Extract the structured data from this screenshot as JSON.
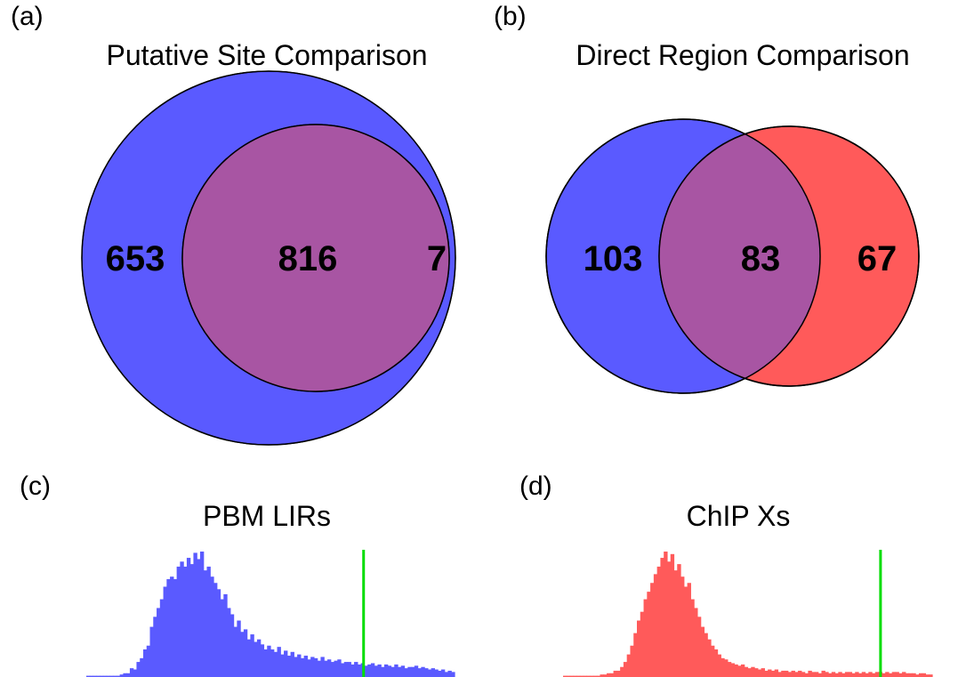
{
  "panels": {
    "a": {
      "letter": "(a)",
      "title": "Putative Site Comparison"
    },
    "b": {
      "letter": "(b)",
      "title": "Direct Region Comparison"
    },
    "c": {
      "letter": "(c)",
      "title": "PBM LIRs"
    },
    "d": {
      "letter": "(d)",
      "title": "ChIP Xs"
    }
  },
  "colors": {
    "blue": "#5a5aff",
    "red": "#ff5a5a",
    "overlap": "#a855a3",
    "marker": "#00dd00"
  },
  "chart_data": [
    {
      "type": "venn",
      "title": "Putative Site Comparison",
      "only_left": 653,
      "both": 816,
      "only_right": 7,
      "labels": [
        "653",
        "816",
        "7"
      ]
    },
    {
      "type": "venn",
      "title": "Direct Region Comparison",
      "only_left": 103,
      "both": 83,
      "only_right": 67,
      "labels": [
        "103",
        "83",
        "67"
      ]
    },
    {
      "type": "histogram",
      "title": "PBM LIRs",
      "color": "blue",
      "bin_heights": [
        0.01,
        0.01,
        0.01,
        0.01,
        0.01,
        0.01,
        0.01,
        0.01,
        0.01,
        0.01,
        0.02,
        0.03,
        0.03,
        0.07,
        0.06,
        0.12,
        0.15,
        0.22,
        0.25,
        0.4,
        0.48,
        0.55,
        0.62,
        0.72,
        0.78,
        0.8,
        0.78,
        0.88,
        0.92,
        0.88,
        0.95,
        0.9,
        0.99,
        0.94,
        1.0,
        0.85,
        0.88,
        0.8,
        0.75,
        0.7,
        0.62,
        0.66,
        0.55,
        0.5,
        0.4,
        0.45,
        0.36,
        0.38,
        0.3,
        0.34,
        0.28,
        0.3,
        0.26,
        0.22,
        0.25,
        0.22,
        0.2,
        0.24,
        0.18,
        0.21,
        0.17,
        0.2,
        0.16,
        0.18,
        0.15,
        0.17,
        0.14,
        0.16,
        0.15,
        0.13,
        0.16,
        0.13,
        0.14,
        0.12,
        0.13,
        0.14,
        0.11,
        0.12,
        0.12,
        0.1,
        0.12,
        0.1,
        0.11,
        0.09,
        0.1,
        0.11,
        0.09,
        0.1,
        0.08,
        0.1,
        0.09,
        0.08,
        0.1,
        0.08,
        0.09,
        0.07,
        0.08,
        0.08,
        0.09,
        0.07,
        0.08,
        0.07,
        0.06,
        0.07,
        0.06,
        0.05,
        0.06,
        0.04,
        0.05,
        0.04
      ],
      "marker_position": 0.753
    },
    {
      "type": "histogram",
      "title": "ChIP Xs",
      "color": "red",
      "bin_heights": [
        0.01,
        0.01,
        0.01,
        0.01,
        0.01,
        0.01,
        0.01,
        0.01,
        0.01,
        0.01,
        0.01,
        0.02,
        0.02,
        0.03,
        0.03,
        0.05,
        0.05,
        0.08,
        0.12,
        0.18,
        0.25,
        0.35,
        0.45,
        0.52,
        0.62,
        0.68,
        0.75,
        0.82,
        0.88,
        0.95,
        1.0,
        0.92,
        0.98,
        0.85,
        0.9,
        0.8,
        0.72,
        0.75,
        0.62,
        0.55,
        0.48,
        0.4,
        0.35,
        0.3,
        0.25,
        0.22,
        0.18,
        0.15,
        0.14,
        0.12,
        0.11,
        0.1,
        0.09,
        0.1,
        0.08,
        0.07,
        0.08,
        0.07,
        0.06,
        0.07,
        0.05,
        0.06,
        0.05,
        0.06,
        0.04,
        0.05,
        0.05,
        0.04,
        0.05,
        0.04,
        0.05,
        0.04,
        0.03,
        0.05,
        0.04,
        0.04,
        0.03,
        0.05,
        0.04,
        0.03,
        0.04,
        0.03,
        0.04,
        0.03,
        0.04,
        0.04,
        0.03,
        0.04,
        0.03,
        0.04,
        0.03,
        0.04,
        0.03,
        0.04,
        0.04,
        0.03,
        0.04,
        0.03,
        0.04,
        0.04,
        0.03,
        0.04,
        0.03,
        0.03,
        0.03,
        0.02,
        0.03,
        0.03,
        0.02,
        0.02
      ],
      "marker_position": 0.86
    }
  ]
}
